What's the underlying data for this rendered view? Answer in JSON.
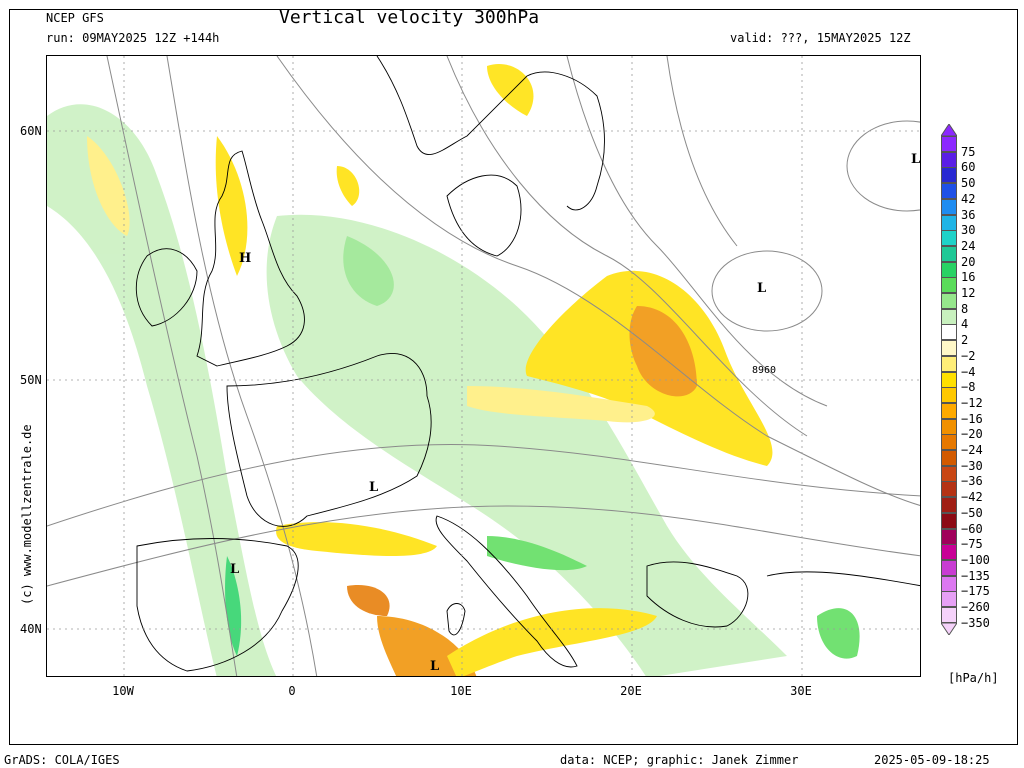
{
  "header": {
    "model": "NCEP GFS",
    "run": "run: 09MAY2025 12Z +144h",
    "title": "Vertical velocity 300hPa",
    "valid": "valid: ???, 15MAY2025 12Z"
  },
  "axes": {
    "lat_labels": [
      "60N",
      "50N",
      "40N"
    ],
    "lon_labels": [
      "10W",
      "0",
      "10E",
      "20E",
      "30E"
    ]
  },
  "credit": "(c) www.modellzentrale.de",
  "legend": {
    "units": "[hPa/h]",
    "entries": [
      {
        "label": "75",
        "color": "#8c28ff"
      },
      {
        "label": "60",
        "color": "#5a1ee6"
      },
      {
        "label": "50",
        "color": "#2828d2"
      },
      {
        "label": "42",
        "color": "#1e50e6"
      },
      {
        "label": "36",
        "color": "#1e8cf0"
      },
      {
        "label": "30",
        "color": "#1eb4e6"
      },
      {
        "label": "24",
        "color": "#1ed2c8"
      },
      {
        "label": "20",
        "color": "#1ec896"
      },
      {
        "label": "16",
        "color": "#28d264"
      },
      {
        "label": "12",
        "color": "#5adc5a"
      },
      {
        "label": "8",
        "color": "#96e68c"
      },
      {
        "label": "4",
        "color": "#c8f0be"
      },
      {
        "label": "2",
        "color": "#ffffff"
      },
      {
        "label": "−2",
        "color": "#fff8c8"
      },
      {
        "label": "−4",
        "color": "#ffee78"
      },
      {
        "label": "−8",
        "color": "#ffe000"
      },
      {
        "label": "−12",
        "color": "#ffc800"
      },
      {
        "label": "−16",
        "color": "#ffaa00"
      },
      {
        "label": "−20",
        "color": "#f09000"
      },
      {
        "label": "−24",
        "color": "#e67800"
      },
      {
        "label": "−30",
        "color": "#d25a00"
      },
      {
        "label": "−36",
        "color": "#c84614"
      },
      {
        "label": "−42",
        "color": "#b43214"
      },
      {
        "label": "−50",
        "color": "#a01e14"
      },
      {
        "label": "−60",
        "color": "#8c0a14"
      },
      {
        "label": "−75",
        "color": "#a0005a"
      },
      {
        "label": "−100",
        "color": "#c80096"
      },
      {
        "label": "−135",
        "color": "#c83cd2"
      },
      {
        "label": "−175",
        "color": "#dc78f0"
      },
      {
        "label": "−260",
        "color": "#e6a0f5"
      },
      {
        "label": "−350",
        "color": "#f5d2fa"
      }
    ]
  },
  "map": {
    "pressure_marks": [
      {
        "label": "L"
      },
      {
        "label": "L"
      },
      {
        "label": "H"
      },
      {
        "label": "L"
      },
      {
        "label": "L"
      },
      {
        "label": "L"
      }
    ],
    "contour_label": "8960"
  },
  "footer": {
    "software": "GrADS: COLA/IGES",
    "source": "data: NCEP; graphic: Janek Zimmer",
    "timestamp": "2025-05-09-18:25"
  }
}
